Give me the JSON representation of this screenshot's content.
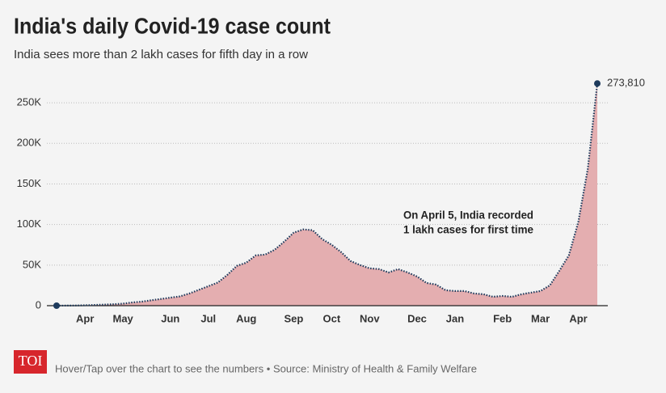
{
  "chart_data": {
    "type": "area",
    "title": "India's daily Covid-19 case count",
    "subtitle": "India sees more than 2 lakh cases for fifth day in a row",
    "categories": [
      null,
      null,
      null,
      "Apr",
      null,
      null,
      null,
      "May",
      null,
      null,
      null,
      null,
      "Jun",
      null,
      null,
      null,
      "Jul",
      null,
      null,
      null,
      "Aug",
      null,
      null,
      null,
      null,
      "Sep",
      null,
      null,
      null,
      "Oct",
      null,
      null,
      null,
      "Nov",
      null,
      null,
      null,
      null,
      "Dec",
      null,
      null,
      null,
      "Jan",
      null,
      null,
      null,
      null,
      "Feb",
      null,
      null,
      null,
      "Mar",
      null,
      null,
      null,
      "Apr",
      null,
      null
    ],
    "values": [
      0,
      100,
      200,
      500,
      900,
      1300,
      1800,
      2500,
      4000,
      5000,
      6700,
      8300,
      9900,
      11500,
      15000,
      19500,
      24000,
      28500,
      38000,
      49000,
      53000,
      62000,
      63000,
      69000,
      79000,
      90000,
      94000,
      93000,
      82000,
      75000,
      66000,
      55000,
      50000,
      46000,
      45000,
      41000,
      45000,
      41000,
      36000,
      28000,
      26000,
      19000,
      18000,
      18000,
      15000,
      14000,
      11000,
      12000,
      11000,
      14000,
      16000,
      18000,
      25000,
      43000,
      62000,
      103000,
      169000,
      273810
    ],
    "value_labels": [
      null,
      null,
      null,
      null,
      null,
      null,
      null,
      null,
      null,
      null,
      null,
      null,
      null,
      null,
      null,
      null,
      null,
      null,
      null,
      null,
      null,
      null,
      null,
      null,
      null,
      null,
      null,
      null,
      null,
      null,
      null,
      null,
      null,
      null,
      null,
      null,
      null,
      null,
      null,
      null,
      null,
      null,
      null,
      null,
      null,
      null,
      null,
      null,
      null,
      null,
      null,
      null,
      null,
      null,
      null,
      null,
      null,
      "273,810"
    ],
    "color": "#1d3a5c",
    "fill_color": "#e4aeb0",
    "ylim": [
      0,
      280000
    ],
    "yticks": [
      0,
      {
        "value": 50000,
        "label": "50K"
      },
      {
        "value": 100000,
        "label": "100K"
      },
      {
        "value": 150000,
        "label": "150K"
      },
      {
        "value": 200000,
        "label": "200K"
      },
      {
        "value": 250000,
        "label": "250K"
      }
    ],
    "grid": true,
    "annotation": [
      "On April 5, India recorded",
      "1 lakh cases for first time"
    ]
  },
  "footer": {
    "logo": "TOI",
    "note": "Hover/Tap over the chart to see the numbers • Source: Ministry of Health & Family Welfare"
  }
}
